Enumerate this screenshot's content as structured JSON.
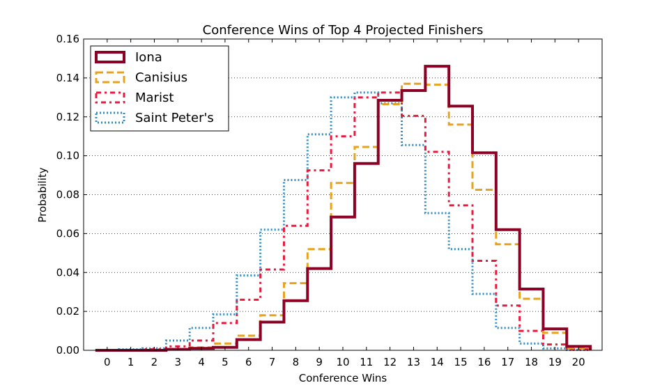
{
  "chart_data": {
    "type": "line",
    "title": "Conference Wins of Top 4 Projected Finishers",
    "xlabel": "Conference Wins",
    "ylabel": "Probability",
    "x": [
      0,
      1,
      2,
      3,
      4,
      5,
      6,
      7,
      8,
      9,
      10,
      11,
      12,
      13,
      14,
      15,
      16,
      17,
      18,
      19,
      20
    ],
    "x_tick_labels": [
      "0",
      "1",
      "2",
      "3",
      "4",
      "5",
      "6",
      "7",
      "8",
      "9",
      "10",
      "11",
      "12",
      "13",
      "14",
      "15",
      "16",
      "17",
      "18",
      "19",
      "20"
    ],
    "y_tick_labels": [
      "0.00",
      "0.02",
      "0.04",
      "0.06",
      "0.08",
      "0.10",
      "0.12",
      "0.14",
      "0.16"
    ],
    "xlim": [
      -1,
      21
    ],
    "ylim": [
      0,
      0.16
    ],
    "grid": "horizontal dotted",
    "legend_position": "upper-left",
    "series": [
      {
        "name": "Iona",
        "color": "#8B0023",
        "dash": "solid",
        "values": [
          0.0,
          0.0,
          0.0,
          0.0005,
          0.001,
          0.0015,
          0.0055,
          0.0145,
          0.0255,
          0.042,
          0.0685,
          0.096,
          0.1285,
          0.1335,
          0.146,
          0.1255,
          0.1015,
          0.062,
          0.0315,
          0.011,
          0.002
        ]
      },
      {
        "name": "Canisius",
        "color": "#E8A21B",
        "dash": "dashed",
        "values": [
          0.0,
          0.0,
          0.0,
          0.0005,
          0.0015,
          0.0035,
          0.0075,
          0.018,
          0.0345,
          0.052,
          0.086,
          0.1045,
          0.1265,
          0.137,
          0.1365,
          0.116,
          0.0825,
          0.0545,
          0.0265,
          0.009,
          0.001
        ]
      },
      {
        "name": "Marist",
        "color": "#E8193C",
        "dash": "dashdot",
        "values": [
          0.0,
          0.0,
          0.0005,
          0.002,
          0.005,
          0.014,
          0.026,
          0.0415,
          0.064,
          0.0925,
          0.11,
          0.13,
          0.1325,
          0.1205,
          0.102,
          0.0745,
          0.046,
          0.023,
          0.01,
          0.003,
          0.0005
        ]
      },
      {
        "name": "Saint Peter's",
        "color": "#2E8BC0",
        "dash": "dotted",
        "values": [
          0.0,
          0.0005,
          0.001,
          0.005,
          0.0115,
          0.0185,
          0.0385,
          0.062,
          0.0875,
          0.111,
          0.13,
          0.1325,
          0.127,
          0.1055,
          0.0705,
          0.052,
          0.029,
          0.0115,
          0.0035,
          0.001,
          0.0002
        ]
      }
    ]
  }
}
